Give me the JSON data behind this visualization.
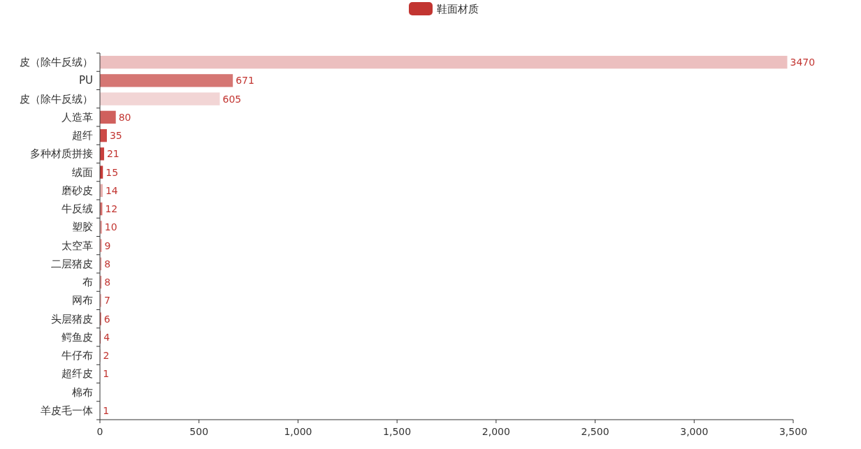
{
  "chart_data": {
    "type": "bar",
    "orientation": "horizontal",
    "legend": "top",
    "grid": false,
    "categories": [
      "皮（除牛反绒）",
      "PU",
      "皮（除牛反绒）",
      "人造革",
      "超纤",
      "多种材质拼接",
      "绒面",
      "磨砂皮",
      "牛反绒",
      "塑胶",
      "太空革",
      "二层猪皮",
      "布",
      "网布",
      "头层猪皮",
      "鳄鱼皮",
      "牛仔布",
      "超纤皮",
      "棉布",
      "羊皮毛一体"
    ],
    "series": [
      {
        "name": "鞋面材质",
        "color": "#c23531",
        "values": [
          3470,
          671,
          605,
          80,
          35,
          21,
          15,
          14,
          12,
          10,
          9,
          8,
          8,
          7,
          6,
          4,
          2,
          1,
          null,
          1
        ],
        "value_labels": [
          "3470",
          "671",
          "605",
          "80",
          "35",
          "21",
          "15",
          "14",
          "12",
          "10",
          "9",
          "8",
          "8",
          "7",
          "6",
          "4",
          "2",
          "1",
          null,
          "1"
        ],
        "colors": [
          "#ecbfbf",
          "#d57673",
          "#f2d5d5",
          "#d0605d",
          "#cc4a47",
          "#c9403d",
          "#c73a37",
          "#e8b0ae",
          "#d66f6c",
          "#e49a98",
          "#ee9c9b",
          "#e8a4a3",
          "#e39593",
          "#eeb0af",
          "#d45b58",
          "#d86664",
          "#e7a1a0",
          "#f0c4c3",
          null,
          "#f2d5d5"
        ]
      }
    ],
    "xlim": [
      0,
      3500
    ],
    "xticks": [
      0,
      500,
      {
        "value": 1000,
        "label": "1,000"
      },
      {
        "value": 1500,
        "label": "1,500"
      },
      {
        "value": 2000,
        "label": "2,000"
      },
      {
        "value": 2500,
        "label": "2,500"
      },
      {
        "value": 3000,
        "label": "3,000"
      },
      {
        "value": 3500,
        "label": "3,500"
      }
    ]
  }
}
